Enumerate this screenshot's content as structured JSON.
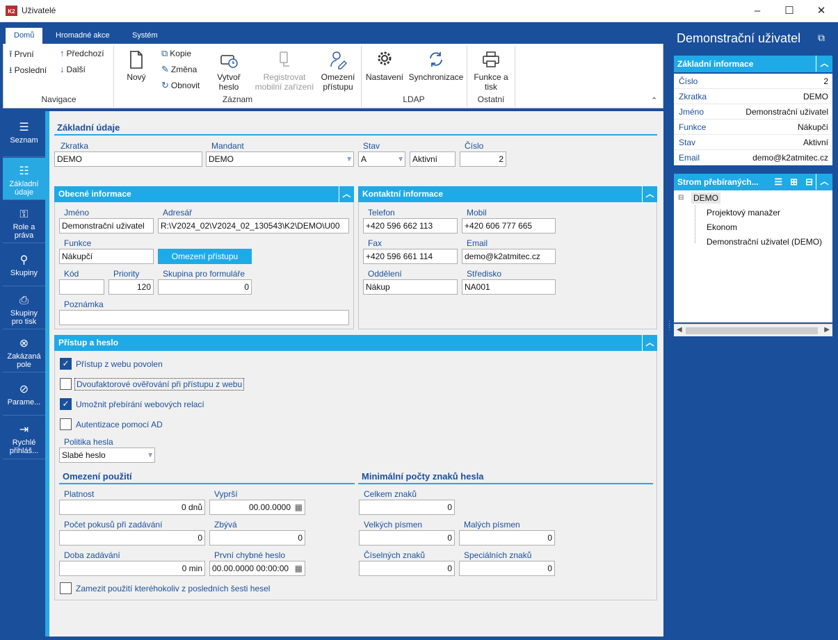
{
  "window": {
    "title": "Uživatelé",
    "logo": "K2",
    "minimize": "–",
    "maximize": "☐",
    "close": "✕"
  },
  "ribbon": {
    "tabs": [
      "Domů",
      "Hromadné akce",
      "Systém"
    ],
    "nav": {
      "first": "První",
      "prev": "Předchozí",
      "last": "Poslední",
      "next": "Další",
      "group": "Navigace"
    },
    "record": {
      "new": "Nový",
      "copy": "Kopie",
      "change": "Změna",
      "refresh": "Obnovit",
      "create_pw_1": "Vytvoř",
      "create_pw_2": "heslo",
      "register_1": "Registrovat",
      "register_2": "mobilní zařízení",
      "restrict_1": "Omezení",
      "restrict_2": "přístupu",
      "group": "Záznam"
    },
    "ldap": {
      "settings": "Nastavení",
      "sync": "Synchronizace",
      "group": "LDAP"
    },
    "other": {
      "func_1": "Funkce a",
      "func_2": "tisk",
      "group": "Ostatní"
    },
    "collapse": "⌃"
  },
  "leftnav": [
    {
      "l1": "Seznam",
      "l2": "",
      "icon": "list-icon"
    },
    {
      "l1": "Základní",
      "l2": "údaje",
      "icon": "details-icon"
    },
    {
      "l1": "Role a",
      "l2": "práva",
      "icon": "roles-icon"
    },
    {
      "l1": "Skupiny",
      "l2": "",
      "icon": "groups-icon"
    },
    {
      "l1": "Skupiny",
      "l2": "pro tisk",
      "icon": "print-groups-icon"
    },
    {
      "l1": "Zakázaná",
      "l2": "pole",
      "icon": "forbidden-fields-icon"
    },
    {
      "l1": "Parame...",
      "l2": "",
      "icon": "parameters-icon"
    },
    {
      "l1": "Rychlé",
      "l2": "přihláš...",
      "icon": "quick-login-icon"
    }
  ],
  "basic": {
    "title": "Základní údaje",
    "zkratka_label": "Zkratka",
    "zkratka": "DEMO",
    "mandant_label": "Mandant",
    "mandant": "DEMO",
    "stav_label": "Stav",
    "stav_code": "A",
    "stav_text": "Aktivní",
    "cislo_label": "Číslo",
    "cislo": "2"
  },
  "general": {
    "title": "Obecné informace",
    "jmeno_label": "Jméno",
    "jmeno": "Demonstrační uživatel",
    "adresar_label": "Adresář",
    "adresar": "R:\\V2024_02\\V2024_02_130543\\K2\\DEMO\\U00",
    "funkce_label": "Funkce",
    "funkce": "Nákupčí",
    "restrict_btn": "Omezení přístupu",
    "kod_label": "Kód",
    "kod": "",
    "priority_label": "Priority",
    "priority": "120",
    "skupina_label": "Skupina pro formuláře",
    "skupina": "0",
    "poznamka_label": "Poznámka",
    "poznamka": ""
  },
  "contact": {
    "title": "Kontaktní informace",
    "telefon_label": "Telefon",
    "telefon": "+420 596 662 113",
    "mobil_label": "Mobil",
    "mobil": "+420 606 777 665",
    "fax_label": "Fax",
    "fax": "+420 596 661 114",
    "email_label": "Email",
    "email": "demo@k2atmitec.cz",
    "oddeleni_label": "Oddělení",
    "oddeleni": "Nákup",
    "stredisko_label": "Středisko",
    "stredisko": "NA001"
  },
  "access": {
    "title": "Přístup a heslo",
    "web_access": {
      "label": "Přístup z webu povolen",
      "checked": true
    },
    "two_factor": {
      "label": "Dvoufaktorové ověřování při přístupu z webu",
      "checked": false
    },
    "web_sessions": {
      "label": "Umožnit přebírání webových relací",
      "checked": true
    },
    "ad_auth": {
      "label": "Autentizace pomocí AD",
      "checked": false
    },
    "policy_label": "Politika hesla",
    "policy": "Slabé heslo",
    "usage_title": "Omezení použití",
    "platnost_label": "Platnost",
    "platnost": "0 dnů",
    "vyprsi_label": "Vyprší",
    "vyprsi": "00.00.0000",
    "pokusy_label": "Počet pokusů při zadávání",
    "pokusy": "0",
    "zbyva_label": "Zbývá",
    "zbyva": "0",
    "doba_label": "Doba zadávání",
    "doba": "0 min",
    "prvni_label": "První chybné heslo",
    "prvni": "00.00.0000 00:00:00",
    "last_six": {
      "label": "Zamezit použití kteréhokoliv z posledních šesti hesel",
      "checked": false
    },
    "min_title": "Minimální počty znaků hesla",
    "celkem_label": "Celkem znaků",
    "celkem": "0",
    "velkych_label": "Velkých písmen",
    "velkych": "0",
    "malych_label": "Malých písmen",
    "malych": "0",
    "ciselnych_label": "Číselných znaků",
    "ciselnych": "0",
    "specialnich_label": "Speciálních znaků",
    "specialnich": "0"
  },
  "rightpane": {
    "title": "Demonstrační uživatel",
    "info_title": "Základní informace",
    "rows": [
      {
        "k": "Číslo",
        "v": "2"
      },
      {
        "k": "Zkratka",
        "v": "DEMO"
      },
      {
        "k": "Jméno",
        "v": "Demonstrační uživatel"
      },
      {
        "k": "Funkce",
        "v": "Nákupčí"
      },
      {
        "k": "Stav",
        "v": "Aktivní"
      },
      {
        "k": "Email",
        "v": "demo@k2atmitec.cz"
      }
    ],
    "tree_title": "Strom přebíraných...",
    "tree_root": "DEMO",
    "tree_children": [
      "Projektový manažer",
      "Ekonom",
      "Demonstrační uživatel (DEMO)"
    ]
  },
  "colors": {
    "primary": "#1a4f9c",
    "accent": "#1eaae7"
  }
}
